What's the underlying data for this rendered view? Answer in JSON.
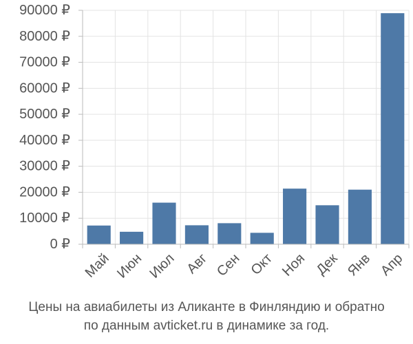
{
  "chart_data": {
    "type": "bar",
    "categories": [
      "Май",
      "Июн",
      "Июл",
      "Авг",
      "Сен",
      "Окт",
      "Ноя",
      "Дек",
      "Янв",
      "Апр"
    ],
    "values": [
      7200,
      4800,
      16000,
      7300,
      8100,
      4400,
      21400,
      15000,
      21000,
      88900
    ],
    "ylim": [
      0,
      90000
    ],
    "yticks": [
      0,
      10000,
      20000,
      30000,
      40000,
      50000,
      60000,
      70000,
      80000,
      90000
    ],
    "ytick_labels": [
      "0 ₽",
      "10000 ₽",
      "20000 ₽",
      "30000 ₽",
      "40000 ₽",
      "50000 ₽",
      "60000 ₽",
      "70000 ₽",
      "80000 ₽",
      "90000 ₽"
    ],
    "bar_color": "#4e79a7",
    "grid": true,
    "legend": "none"
  },
  "caption": {
    "line1": "Цены на авиабилеты из Аликанте в Финляндию и обратно",
    "line2": "по данным avticket.ru в динамике за год."
  }
}
